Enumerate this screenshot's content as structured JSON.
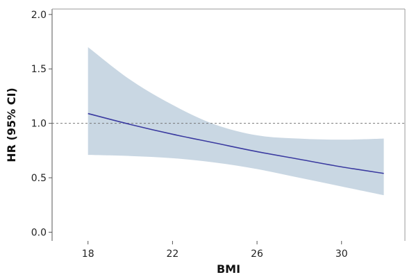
{
  "chart_data": {
    "type": "line",
    "xlabel": "BMI",
    "ylabel": "HR (95% CI)",
    "xlim": [
      16.3,
      33.0
    ],
    "ylim": [
      -0.08,
      2.05
    ],
    "x_ticks": [
      18,
      22,
      26,
      30
    ],
    "y_ticks": [
      0.0,
      0.5,
      1.0,
      1.5,
      2.0
    ],
    "x_tick_labels": [
      "18",
      "22",
      "26",
      "30"
    ],
    "y_tick_labels": [
      "0.0",
      "0.5",
      "1.0",
      "1.5",
      "2.0"
    ],
    "reference_line": {
      "y": 1.0,
      "style": "dotted",
      "color": "#777777"
    },
    "series": [
      {
        "x": [
          18,
          20,
          22,
          24,
          26,
          28,
          30,
          32
        ],
        "y": [
          1.09,
          0.99,
          0.9,
          0.82,
          0.74,
          0.67,
          0.6,
          0.54
        ],
        "lower": [
          0.71,
          0.7,
          0.68,
          0.64,
          0.58,
          0.5,
          0.42,
          0.34
        ],
        "upper": [
          1.7,
          1.4,
          1.17,
          0.99,
          0.89,
          0.86,
          0.85,
          0.86
        ],
        "color": "#3a3aa0",
        "band_color": "#c9d7e3"
      }
    ],
    "grid": false,
    "frame": "left-top-right"
  }
}
